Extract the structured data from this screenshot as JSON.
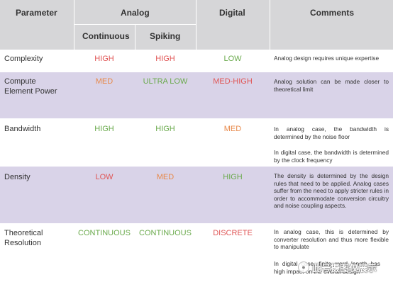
{
  "header": {
    "parameter": "Parameter",
    "analog": "Analog",
    "digital": "Digital",
    "comments": "Comments",
    "continuous": "Continuous",
    "spiking": "Spiking"
  },
  "rows": [
    {
      "param": "Complexity",
      "continuous": "HIGH",
      "spiking": "HIGH",
      "digital": "LOW",
      "comments": [
        "Analog design requires unique expertise"
      ]
    },
    {
      "param": "Compute Element Power",
      "continuous": "MED",
      "spiking": "ULTRA LOW",
      "digital": "MED-HIGH",
      "comments": [
        "Analog solution can be made closer to theoretical limit"
      ]
    },
    {
      "param": "Bandwidth",
      "continuous": "HIGH",
      "spiking": "HIGH",
      "digital": "MED",
      "comments": [
        "In analog case, the bandwidth is determined by the noise floor",
        "In digital case, the bandwidth is determined by the clock frequency"
      ]
    },
    {
      "param": "Density",
      "continuous": "LOW",
      "spiking": "MED",
      "digital": "HIGH",
      "comments": [
        "The density is determined by the design rules that need to be applied. Analog cases suffer from the need to apply stricter rules in order to accommodate conversion circuitry and noise coupling aspects."
      ]
    },
    {
      "param": "Theoretical Resolution",
      "continuous": "CONTINUOUS",
      "spiking": "CONTINUOUS",
      "digital": "DISCRETE",
      "comments": [
        "In analog case, this is determined by converter resolution and thus more flexible to manipulate",
        "In digital case, finite word length has high impact on the overall design"
      ]
    }
  ],
  "watermark": {
    "text": "此号摄图仅展示"
  }
}
